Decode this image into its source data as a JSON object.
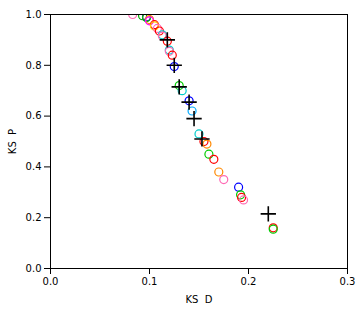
{
  "chart_data": {
    "type": "scatter",
    "xlabel": "KS  D",
    "ylabel": "KS  P",
    "xlim": [
      0,
      0.3
    ],
    "ylim": [
      0,
      1
    ],
    "xticks": [
      {
        "value": 0,
        "label": "0.0"
      },
      0.1,
      0.2,
      0.3
    ],
    "yticks": [
      {
        "value": 0,
        "label": "0.0"
      },
      0.2,
      0.4,
      0.6,
      0.8,
      {
        "value": 1.0,
        "label": "1.0"
      }
    ],
    "series": [
      {
        "marker": "circle",
        "x": [
          0.083,
          0.093,
          0.097,
          0.097,
          0.097,
          0.1,
          0.1,
          0.105,
          0.105,
          0.108,
          0.11,
          0.113,
          0.113,
          0.118,
          0.12,
          0.12,
          0.123,
          0.125,
          0.13,
          0.133,
          0.14,
          0.143,
          0.15,
          0.155,
          0.158,
          0.16,
          0.165,
          0.17,
          0.175,
          0.19,
          0.192,
          0.193,
          0.195,
          0.225,
          0.225
        ],
        "values": [
          1.0,
          0.995,
          0.99,
          0.99,
          0.988,
          0.98,
          0.975,
          0.96,
          0.955,
          0.945,
          0.935,
          0.92,
          0.915,
          0.895,
          0.86,
          0.855,
          0.84,
          0.795,
          0.72,
          0.7,
          0.66,
          0.62,
          0.53,
          0.5,
          0.49,
          0.45,
          0.43,
          0.38,
          0.35,
          0.32,
          0.29,
          0.28,
          0.27,
          0.16,
          0.155
        ],
        "colors": [
          "#ff69b4",
          "#00aa00",
          "#ff0000",
          "#0000ff",
          "#00cc00",
          "#ff8800",
          "#ff00ff",
          "#ff0000",
          "#ffcc00",
          "#ff69b4",
          "#ff0000",
          "#00cccc",
          "#ff69b4",
          "#ff0000",
          "#00cccc",
          "#ff69b4",
          "#ff0000",
          "#0000ff",
          "#00cc00",
          "#00cccc",
          "#0000ff",
          "#00aaff",
          "#00cccc",
          "#ff0000",
          "#ff8800",
          "#00cc00",
          "#ff0000",
          "#ff8800",
          "#ff69b4",
          "#0000ff",
          "#00cc00",
          "#ff0000",
          "#ff69b4",
          "#ff0000",
          "#00cc00"
        ]
      },
      {
        "marker": "plus",
        "color": "#000000",
        "x": [
          0.118,
          0.125,
          0.13,
          0.14,
          0.145,
          0.153,
          0.22
        ],
        "values": [
          0.9,
          0.8,
          0.715,
          0.655,
          0.59,
          0.51,
          0.215
        ]
      }
    ]
  }
}
